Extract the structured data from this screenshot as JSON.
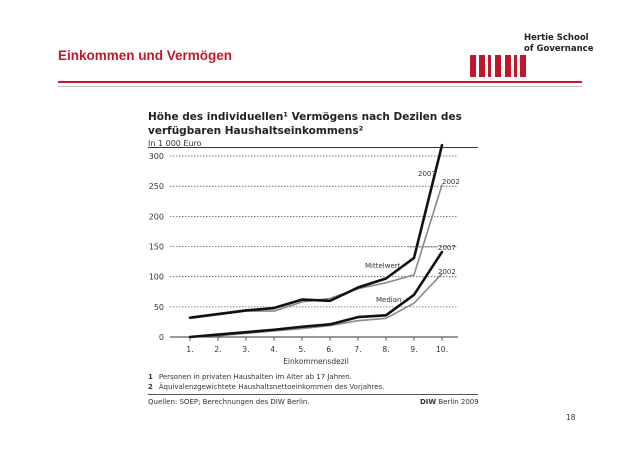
{
  "header": {
    "logo_line1": "Hertie School",
    "logo_line2": "of Governance",
    "title": "Einkommen und Vermögen",
    "brand_color": "#c0172c"
  },
  "chart_data": {
    "type": "line",
    "title": "Höhe des individuellen¹ Vermögens nach Dezilen des verfügbaren Haushaltseinkommens²",
    "title_line1": "Höhe des individuellen¹ Vermögens nach Dezilen des",
    "title_line2": "verfügbaren Haushaltseinkommens²",
    "subtitle": "In 1 000 Euro",
    "xlabel": "Einkommensdezil",
    "ylabel": "",
    "categories": [
      "1.",
      "2.",
      "3.",
      "4.",
      "5.",
      "6.",
      "7.",
      "8.",
      "9.",
      "10."
    ],
    "yticks": [
      0,
      50,
      100,
      150,
      200,
      250,
      300
    ],
    "ylim": [
      0,
      310
    ],
    "grid": "dotted horizontal",
    "series": [
      {
        "name": "Mittelwert 2007",
        "values": [
          32,
          38,
          44,
          48,
          62,
          60,
          82,
          97,
          131,
          318
        ],
        "color": "#111111",
        "width": 2.6
      },
      {
        "name": "Mittelwert 2002",
        "values": [
          31,
          37,
          43,
          43,
          58,
          64,
          80,
          90,
          103,
          252
        ],
        "color": "#8a8a8a",
        "width": 1.6
      },
      {
        "name": "Median 2007",
        "values": [
          0,
          4,
          8,
          12,
          17,
          21,
          33,
          36,
          70,
          141
        ],
        "color": "#111111",
        "width": 2.6
      },
      {
        "name": "Median 2002",
        "values": [
          0,
          2,
          6,
          10,
          14,
          19,
          27,
          31,
          56,
          105
        ],
        "color": "#8a8a8a",
        "width": 1.6
      }
    ],
    "annotations": {
      "mean_2007": "2007",
      "mean_2002": "2002",
      "median_2007": "2007",
      "median_2002": "2002",
      "mean_label": "Mittelwert",
      "median_label": "Median"
    }
  },
  "footnotes": [
    {
      "num": "1",
      "text": "Personen in privaten Haushalten im Alter ab 17 Jahren."
    },
    {
      "num": "2",
      "text": "Äquivalenzgewichtete Haushaltsnettoeinkommen des Vorjahres."
    }
  ],
  "source": "Quellen: SOEP; Berechnungen des DIW Berlin.",
  "credit_bold": "DIW",
  "credit_rest": " Berlin 2009",
  "page_number": "18"
}
